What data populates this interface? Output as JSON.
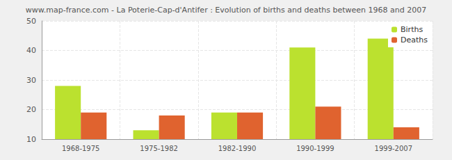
{
  "chart_data": {
    "type": "bar",
    "title": "www.map-france.com - La Poterie-Cap-d'Antifer : Evolution of births and deaths between 1968 and 2007",
    "categories": [
      "1968-1975",
      "1975-1982",
      "1982-1990",
      "1990-1999",
      "1999-2007"
    ],
    "series": [
      {
        "name": "Births",
        "color": "#bbe12f",
        "values": [
          28,
          13,
          19,
          41,
          44
        ]
      },
      {
        "name": "Deaths",
        "color": "#e0632f",
        "values": [
          19,
          18,
          19,
          21,
          14
        ]
      }
    ],
    "ylim": [
      10,
      50
    ],
    "yticks": [
      10,
      20,
      30,
      40,
      50
    ],
    "grid": true,
    "legend": "top-right"
  }
}
